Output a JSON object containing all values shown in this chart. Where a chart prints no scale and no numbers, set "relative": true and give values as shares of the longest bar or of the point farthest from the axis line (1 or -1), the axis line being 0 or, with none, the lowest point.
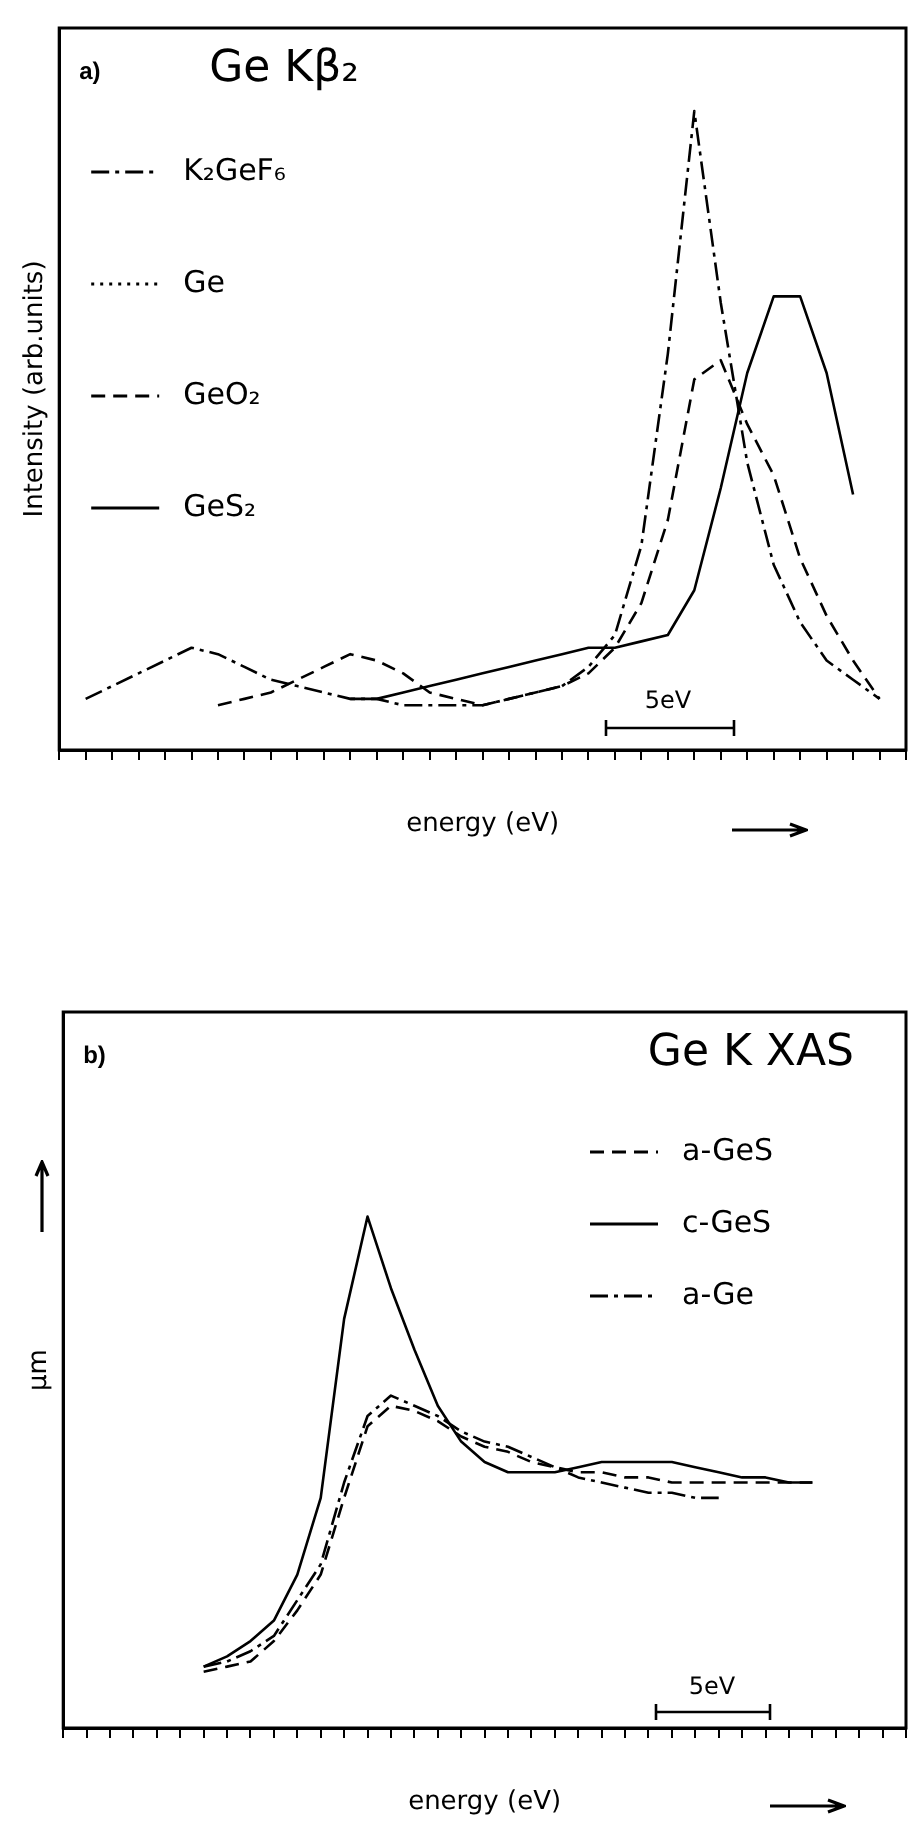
{
  "chart_data": [
    {
      "type": "line",
      "title": "Ge Kβ₂",
      "xlabel": "energy (eV)",
      "ylabel": "Intensity (arb.units)",
      "annotations": [
        "a)",
        "5eV"
      ],
      "relative": true,
      "grid": false,
      "legend": "top left",
      "categories": [
        null,
        null,
        null,
        null,
        null,
        null,
        null,
        null,
        null,
        null,
        null,
        null,
        null,
        null,
        null,
        null,
        null,
        null,
        null,
        null,
        null,
        null,
        null,
        null,
        null,
        null,
        null,
        null,
        null,
        null,
        null,
        null,
        null
      ],
      "series": [
        {
          "name": "K₂GeF₆",
          "color": "#000000",
          "line_style": "dashdot",
          "values": [
            null,
            0.08,
            0.1,
            0.12,
            0.14,
            0.16,
            0.15,
            0.13,
            0.11,
            0.1,
            0.09,
            0.08,
            0.08,
            0.07,
            0.07,
            0.07,
            0.07,
            0.08,
            0.09,
            0.1,
            0.13,
            0.18,
            0.32,
            0.62,
            1.0,
            0.7,
            0.45,
            0.29,
            0.2,
            0.14,
            0.11,
            0.08,
            null
          ]
        },
        {
          "name": "Ge",
          "color": "#000000",
          "line_style": "dotted",
          "values": [
            null,
            null,
            null,
            null,
            null,
            null,
            null,
            null,
            null,
            null,
            null,
            null,
            null,
            null,
            null,
            null,
            null,
            null,
            null,
            null,
            null,
            null,
            null,
            null,
            null,
            null,
            null,
            null,
            null,
            null,
            null,
            null,
            null
          ]
        },
        {
          "name": "GeO₂",
          "color": "#000000",
          "line_style": "dashed",
          "values": [
            null,
            null,
            null,
            null,
            null,
            null,
            0.07,
            0.08,
            0.09,
            0.11,
            0.13,
            0.15,
            0.14,
            0.12,
            0.09,
            0.08,
            0.07,
            0.08,
            0.09,
            0.1,
            0.12,
            0.16,
            0.23,
            0.36,
            0.58,
            0.61,
            0.51,
            0.43,
            0.3,
            0.21,
            0.14,
            0.08,
            null
          ]
        },
        {
          "name": "GeS₂",
          "color": "#000000",
          "line_style": "solid",
          "values": [
            null,
            null,
            null,
            null,
            null,
            null,
            null,
            null,
            null,
            null,
            null,
            0.08,
            0.08,
            0.09,
            0.1,
            0.11,
            0.12,
            0.13,
            0.14,
            0.15,
            0.16,
            0.16,
            0.17,
            0.18,
            0.25,
            0.41,
            0.59,
            0.71,
            0.71,
            0.59,
            0.4,
            null,
            null
          ]
        }
      ]
    },
    {
      "type": "line",
      "title": "Ge K XAS",
      "xlabel": "energy (eV)",
      "ylabel": "μm",
      "annotations": [
        "b)",
        "5eV"
      ],
      "relative": true,
      "grid": false,
      "legend": "top right",
      "categories": [
        null,
        null,
        null,
        null,
        null,
        null,
        null,
        null,
        null,
        null,
        null,
        null,
        null,
        null,
        null,
        null,
        null,
        null,
        null,
        null,
        null,
        null,
        null,
        null,
        null,
        null,
        null,
        null,
        null,
        null,
        null,
        null,
        null,
        null,
        null,
        null,
        null
      ],
      "series": [
        {
          "name": "a-GeS",
          "color": "#000000",
          "line_style": "dashed",
          "values": [
            null,
            null,
            null,
            null,
            null,
            null,
            0.11,
            0.12,
            0.13,
            0.17,
            0.23,
            0.3,
            0.45,
            0.59,
            0.63,
            0.62,
            0.6,
            0.57,
            0.55,
            0.54,
            0.52,
            0.51,
            0.5,
            0.5,
            0.49,
            0.49,
            0.48,
            0.48,
            0.48,
            0.48,
            0.48,
            0.48,
            0.48,
            null,
            null,
            null,
            null
          ]
        },
        {
          "name": "c-GeS",
          "color": "#000000",
          "line_style": "solid",
          "values": [
            null,
            null,
            null,
            null,
            null,
            null,
            0.12,
            0.14,
            0.17,
            0.21,
            0.3,
            0.45,
            0.8,
            1.0,
            0.86,
            0.74,
            0.63,
            0.56,
            0.52,
            0.5,
            0.5,
            0.5,
            0.51,
            0.52,
            0.52,
            0.52,
            0.52,
            0.51,
            0.5,
            0.49,
            0.49,
            0.48,
            0.48,
            null,
            null,
            null,
            null
          ]
        },
        {
          "name": "a-Ge",
          "color": "#000000",
          "line_style": "dashdot",
          "values": [
            null,
            null,
            null,
            null,
            null,
            null,
            0.12,
            0.13,
            0.15,
            0.18,
            0.25,
            0.32,
            0.48,
            0.61,
            0.65,
            0.63,
            0.61,
            0.58,
            0.56,
            0.55,
            0.53,
            0.51,
            0.49,
            0.48,
            0.47,
            0.46,
            0.46,
            0.45,
            0.45,
            null,
            null,
            null,
            null,
            null,
            null,
            null,
            null
          ]
        }
      ]
    }
  ]
}
